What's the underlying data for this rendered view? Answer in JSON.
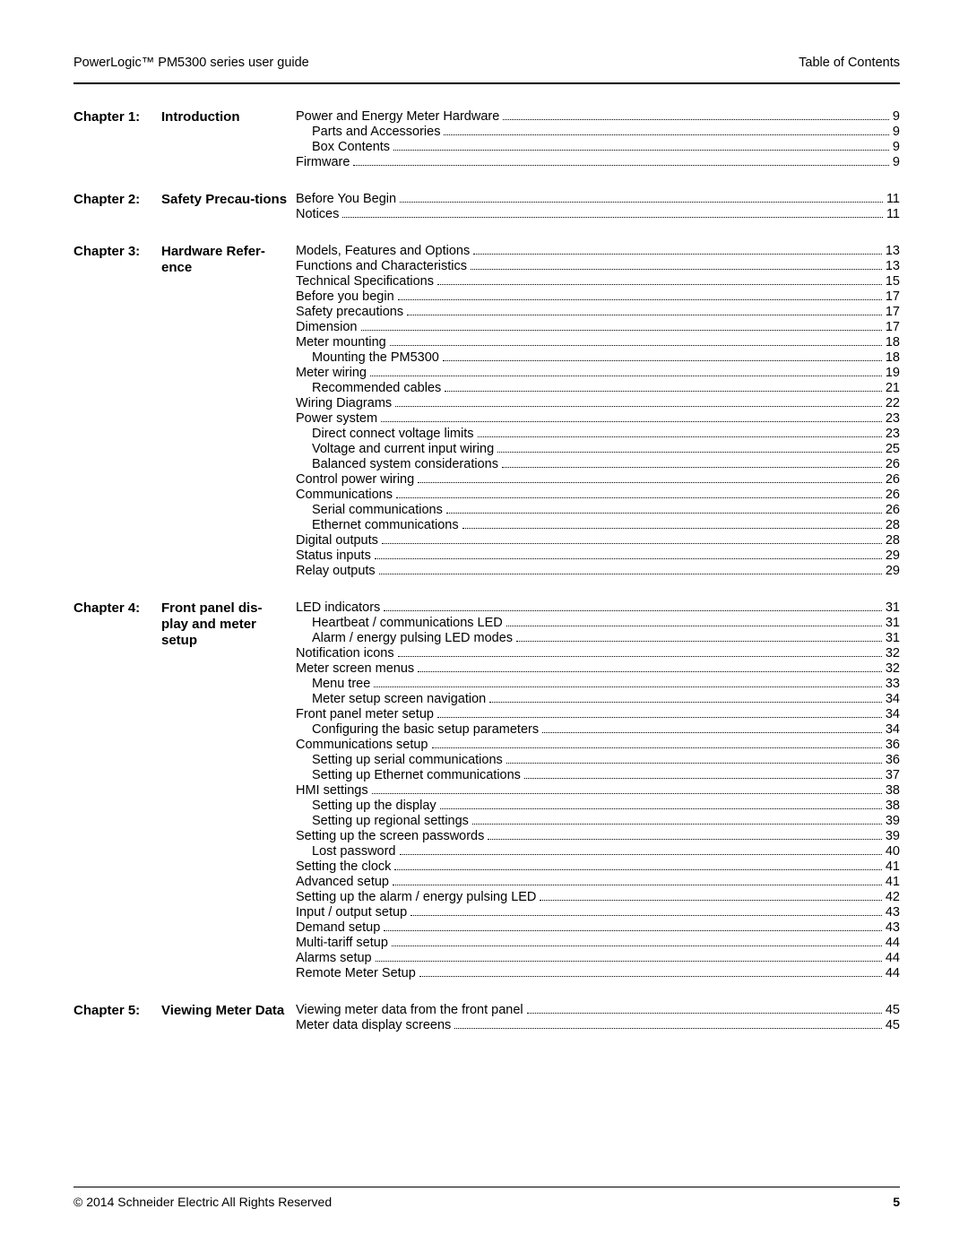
{
  "header": {
    "left": "PowerLogic™ PM5300 series user guide",
    "right": "Table of Contents"
  },
  "footer": {
    "copyright": "© 2014 Schneider Electric All Rights Reserved",
    "page": "5"
  },
  "chapters": [
    {
      "num": "Chapter 1:",
      "title": "Introduction",
      "entries": [
        {
          "label": "Power and Energy Meter Hardware",
          "page": "9",
          "indent": 0
        },
        {
          "label": "Parts and Accessories",
          "page": "9",
          "indent": 1
        },
        {
          "label": "Box Contents",
          "page": "9",
          "indent": 1
        },
        {
          "label": "Firmware",
          "page": "9",
          "indent": 0
        }
      ]
    },
    {
      "num": "Chapter 2:",
      "title": "Safety Precau-tions",
      "entries": [
        {
          "label": "Before You Begin",
          "page": "11",
          "indent": 0
        },
        {
          "label": "Notices",
          "page": "11",
          "indent": 0
        }
      ]
    },
    {
      "num": "Chapter 3:",
      "title": "Hardware Refer-ence",
      "entries": [
        {
          "label": "Models, Features and Options",
          "page": "13",
          "indent": 0
        },
        {
          "label": "Functions and Characteristics",
          "page": "13",
          "indent": 0
        },
        {
          "label": "Technical Specifications",
          "page": "15",
          "indent": 0
        },
        {
          "label": "Before you begin",
          "page": "17",
          "indent": 0
        },
        {
          "label": "Safety precautions",
          "page": "17",
          "indent": 0
        },
        {
          "label": "Dimension",
          "page": "17",
          "indent": 0
        },
        {
          "label": "Meter mounting",
          "page": "18",
          "indent": 0
        },
        {
          "label": "Mounting the PM5300",
          "page": "18",
          "indent": 1
        },
        {
          "label": "Meter wiring",
          "page": "19",
          "indent": 0
        },
        {
          "label": "Recommended cables",
          "page": "21",
          "indent": 1
        },
        {
          "label": "Wiring Diagrams",
          "page": "22",
          "indent": 0
        },
        {
          "label": "Power system",
          "page": "23",
          "indent": 0
        },
        {
          "label": "Direct connect voltage limits",
          "page": "23",
          "indent": 1
        },
        {
          "label": "Voltage and current input wiring",
          "page": "25",
          "indent": 1
        },
        {
          "label": "Balanced system considerations",
          "page": "26",
          "indent": 1
        },
        {
          "label": "Control power wiring",
          "page": "26",
          "indent": 0
        },
        {
          "label": "Communications",
          "page": "26",
          "indent": 0
        },
        {
          "label": "Serial communications",
          "page": "26",
          "indent": 1
        },
        {
          "label": "Ethernet communications",
          "page": "28",
          "indent": 1
        },
        {
          "label": "Digital outputs",
          "page": "28",
          "indent": 0
        },
        {
          "label": "Status inputs",
          "page": "29",
          "indent": 0
        },
        {
          "label": "Relay outputs",
          "page": "29",
          "indent": 0
        }
      ]
    },
    {
      "num": "Chapter 4:",
      "title": "Front panel dis-play and meter setup",
      "entries": [
        {
          "label": "LED indicators",
          "page": "31",
          "indent": 0
        },
        {
          "label": "Heartbeat / communications LED",
          "page": "31",
          "indent": 1
        },
        {
          "label": "Alarm / energy pulsing LED modes",
          "page": "31",
          "indent": 1
        },
        {
          "label": "Notification icons",
          "page": "32",
          "indent": 0
        },
        {
          "label": "Meter screen menus",
          "page": "32",
          "indent": 0
        },
        {
          "label": "Menu tree",
          "page": "33",
          "indent": 1
        },
        {
          "label": "Meter setup screen navigation",
          "page": "34",
          "indent": 1
        },
        {
          "label": "Front panel meter setup",
          "page": "34",
          "indent": 0
        },
        {
          "label": "Configuring the basic setup parameters",
          "page": "34",
          "indent": 1
        },
        {
          "label": "Communications setup",
          "page": "36",
          "indent": 0
        },
        {
          "label": "Setting up serial communications",
          "page": "36",
          "indent": 1
        },
        {
          "label": "Setting up Ethernet communications",
          "page": "37",
          "indent": 1
        },
        {
          "label": "HMI settings",
          "page": "38",
          "indent": 0
        },
        {
          "label": "Setting up the display",
          "page": "38",
          "indent": 1
        },
        {
          "label": "Setting up regional settings",
          "page": "39",
          "indent": 1
        },
        {
          "label": "Setting up the screen passwords",
          "page": "39",
          "indent": 0
        },
        {
          "label": "Lost password",
          "page": "40",
          "indent": 1
        },
        {
          "label": "Setting the clock",
          "page": "41",
          "indent": 0
        },
        {
          "label": "Advanced setup",
          "page": "41",
          "indent": 0
        },
        {
          "label": "Setting up the alarm / energy pulsing LED",
          "page": "42",
          "indent": 0
        },
        {
          "label": "Input / output setup",
          "page": "43",
          "indent": 0
        },
        {
          "label": "Demand setup",
          "page": "43",
          "indent": 0
        },
        {
          "label": "Multi-tariff setup",
          "page": "44",
          "indent": 0
        },
        {
          "label": "Alarms setup",
          "page": "44",
          "indent": 0
        },
        {
          "label": "Remote Meter Setup",
          "page": "44",
          "indent": 0
        }
      ]
    },
    {
      "num": "Chapter 5:",
      "title": "Viewing Meter Data",
      "entries": [
        {
          "label": "Viewing meter data from the front panel",
          "page": "45",
          "indent": 0
        },
        {
          "label": "Meter data display screens",
          "page": "45",
          "indent": 0
        }
      ]
    }
  ]
}
